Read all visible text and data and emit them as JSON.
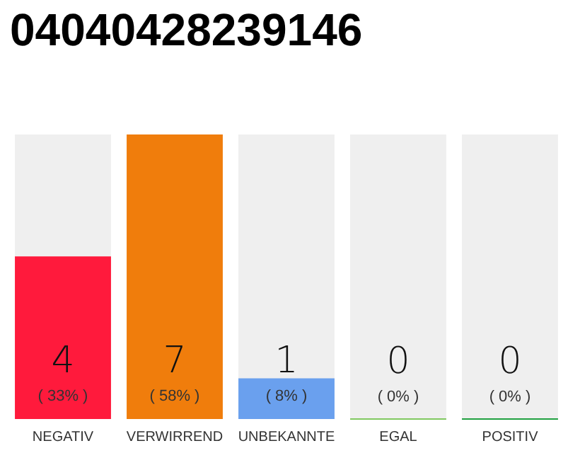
{
  "chart_data": {
    "type": "bar",
    "title": "04040428239146",
    "categories": [
      "NEGATIV",
      "VERWIRREND",
      "UNBEKANNTE",
      "EGAL",
      "POSITIV"
    ],
    "values": [
      4,
      7,
      1,
      0,
      0
    ],
    "colors": [
      "#ff1a3c",
      "#f07d0c",
      "#6aa0ee",
      "#80c860",
      "#20a040"
    ],
    "data_labels": true,
    "annotations": [
      "( 33% )",
      "( 58% )",
      "( 8% )",
      "( 0% )",
      "( 0% )"
    ]
  }
}
